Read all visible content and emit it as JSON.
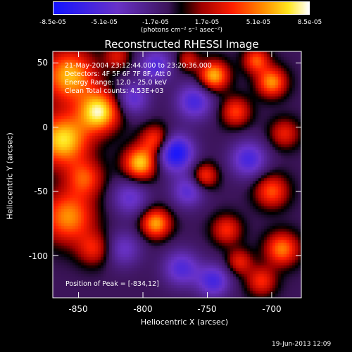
{
  "colorbar": {
    "ticks": [
      "-8.5e-05",
      "-5.1e-05",
      "-1.7e-05",
      "1.7e-05",
      "5.1e-05",
      "8.5e-05"
    ],
    "units": "(photons cm⁻² s⁻¹ asec⁻²)"
  },
  "title": "Reconstructed RHESSI Image",
  "annotations": {
    "line1": "21-May-2004 23:12:44.000 to 23:20:36.000",
    "line2": "Detectors: 4F 5F 6F 7F 8F, Att 0",
    "line3": "Energy Range: 12.0 - 25.0 keV",
    "line4": "Clean    Total counts: 4.53E+03",
    "peak": "Position of Peak = [-834,12]"
  },
  "footer": {
    "timestamp": "19-Jun-2013 12:09"
  },
  "chart_data": {
    "type": "heatmap",
    "title": "Reconstructed RHESSI Image",
    "xlabel": "Heliocentric X (arcsec)",
    "ylabel": "Heliocentric Y (arcsec)",
    "xlim": [
      -870,
      -677
    ],
    "ylim": [
      -133,
      59
    ],
    "xticks": [
      -850,
      -800,
      -750,
      -700
    ],
    "yticks": [
      50,
      0,
      -50,
      -100
    ],
    "colorbar_range": [
      -8.5e-05,
      8.5e-05
    ],
    "peak_position": [
      -834,
      12
    ],
    "blobs": [
      {
        "x": -834,
        "y": 12,
        "amp": 1.0,
        "s": 11
      },
      {
        "x": -857,
        "y": 40,
        "amp": 0.85,
        "s": 14
      },
      {
        "x": -862,
        "y": -10,
        "amp": 0.95,
        "s": 14
      },
      {
        "x": -858,
        "y": -70,
        "amp": 0.75,
        "s": 14
      },
      {
        "x": -845,
        "y": -40,
        "amp": 0.55,
        "s": 10
      },
      {
        "x": -838,
        "y": -95,
        "amp": 0.45,
        "s": 9
      },
      {
        "x": -808,
        "y": 22,
        "amp": -0.5,
        "s": 9
      },
      {
        "x": -790,
        "y": -10,
        "amp": 0.6,
        "s": 8
      },
      {
        "x": -802,
        "y": -28,
        "amp": 0.9,
        "s": 9
      },
      {
        "x": -810,
        "y": -55,
        "amp": -0.45,
        "s": 10
      },
      {
        "x": -790,
        "y": -75,
        "amp": 0.8,
        "s": 8
      },
      {
        "x": -815,
        "y": -95,
        "amp": -0.4,
        "s": 10
      },
      {
        "x": -775,
        "y": -20,
        "amp": -0.9,
        "s": 10
      },
      {
        "x": -760,
        "y": 20,
        "amp": -0.6,
        "s": 10
      },
      {
        "x": -765,
        "y": -50,
        "amp": -0.5,
        "s": 9
      },
      {
        "x": -770,
        "y": -110,
        "amp": -0.55,
        "s": 10
      },
      {
        "x": -752,
        "y": -38,
        "amp": 0.55,
        "s": 7
      },
      {
        "x": -735,
        "y": -80,
        "amp": 0.5,
        "s": 8
      },
      {
        "x": -745,
        "y": 40,
        "amp": 0.85,
        "s": 8
      },
      {
        "x": -728,
        "y": 12,
        "amp": 0.55,
        "s": 8
      },
      {
        "x": -718,
        "y": -25,
        "amp": -0.6,
        "s": 10
      },
      {
        "x": -700,
        "y": 35,
        "amp": 0.75,
        "s": 8
      },
      {
        "x": -712,
        "y": 52,
        "amp": 0.6,
        "s": 7
      },
      {
        "x": -690,
        "y": -5,
        "amp": 0.45,
        "s": 8
      },
      {
        "x": -700,
        "y": -50,
        "amp": 0.6,
        "s": 9
      },
      {
        "x": -692,
        "y": -95,
        "amp": 0.7,
        "s": 9
      },
      {
        "x": -708,
        "y": -120,
        "amp": 0.5,
        "s": 8
      },
      {
        "x": -745,
        "y": -120,
        "amp": -0.6,
        "s": 9
      },
      {
        "x": -790,
        "y": 48,
        "amp": -0.55,
        "s": 9
      },
      {
        "x": -820,
        "y": 55,
        "amp": 0.4,
        "s": 7
      },
      {
        "x": -765,
        "y": 52,
        "amp": 0.4,
        "s": 6
      },
      {
        "x": -725,
        "y": -105,
        "amp": 0.45,
        "s": 7
      }
    ]
  }
}
